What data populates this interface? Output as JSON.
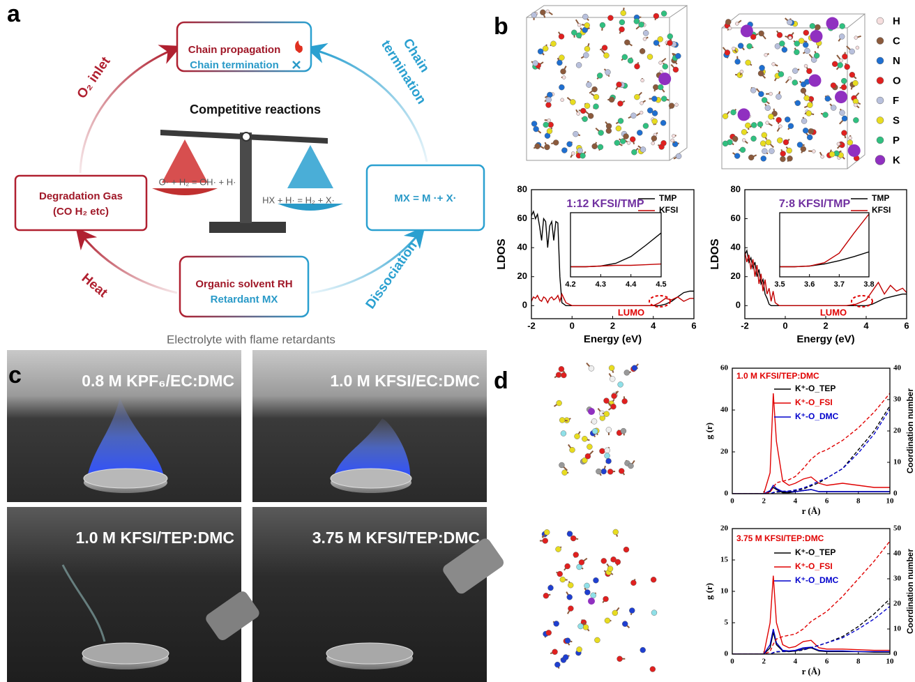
{
  "panel_a": {
    "label": "a",
    "propagation": "Chain propagation",
    "termination": "Chain termination",
    "competitive": "Competitive reactions",
    "degradation_title": "Degradation Gas",
    "degradation_detail": "(CO H₂ etc)",
    "reaction_1": "O· + H₂ = OH· + H·",
    "reaction_2": "HX + H· = H₂ + X·",
    "dissociation_eq": "MX = M ·+ X·",
    "solvent": "Organic solvent RH",
    "retardant": "Retardant MX",
    "caption": "Electrolyte with flame retardants",
    "arc_labels": {
      "o2_inlet": "O₂ inlet",
      "chain": "Chain",
      "termination": "termination",
      "heat": "Heat",
      "dissociation": "Dissociation"
    }
  },
  "panel_b": {
    "label": "b",
    "elements": [
      {
        "symbol": "H",
        "color": "#f6dede"
      },
      {
        "symbol": "C",
        "color": "#8b5a3c"
      },
      {
        "symbol": "N",
        "color": "#1f6fd0"
      },
      {
        "symbol": "O",
        "color": "#e0201f"
      },
      {
        "symbol": "F",
        "color": "#b8c0dc"
      },
      {
        "symbol": "S",
        "color": "#e8dc20"
      },
      {
        "symbol": "P",
        "color": "#30c080"
      },
      {
        "symbol": "K",
        "color": "#9030c0"
      }
    ]
  },
  "panel_c": {
    "label": "c",
    "photos": [
      "0.8 M KPF₆/EC:DMC",
      "1.0 M KFSI/EC:DMC",
      "1.0 M KFSI/TEP:DMC",
      "3.75 M KFSI/TEP:DMC"
    ]
  },
  "panel_d": {
    "label": "d"
  },
  "chart_data": [
    {
      "type": "line",
      "title": "1:12 KFSI/TMP",
      "title_color": "#7030a0",
      "xlabel": "Energy (eV)",
      "ylabel": "LDOS",
      "annotation": "LUMO",
      "xlim": [
        -2,
        6
      ],
      "xticks": [
        -2,
        0,
        2,
        4,
        6
      ],
      "ylim": [
        -9,
        80
      ],
      "yticks": [
        0,
        20,
        40,
        60,
        80
      ],
      "x": [
        -2,
        -1.9,
        -1.8,
        -1.7,
        -1.6,
        -1.5,
        -1.4,
        -1.3,
        -1.2,
        -1.1,
        -1.0,
        -0.9,
        -0.8,
        -0.7,
        -0.6,
        -0.5,
        -0.3,
        0,
        1,
        2,
        3,
        4,
        4.3,
        4.6,
        4.9,
        5.2,
        5.5,
        5.8,
        6
      ],
      "series": [
        {
          "name": "TMP",
          "color": "#000000",
          "values": [
            62,
            65,
            60,
            63,
            55,
            45,
            60,
            58,
            40,
            55,
            58,
            45,
            58,
            57,
            20,
            2,
            0,
            0,
            0,
            0,
            0,
            0,
            0,
            1,
            3,
            6,
            9,
            10,
            10
          ]
        },
        {
          "name": "KFSI",
          "color": "#c00000",
          "values": [
            3,
            6,
            5,
            7,
            4,
            3,
            6,
            5,
            2,
            5,
            6,
            4,
            5,
            7,
            3,
            8,
            2,
            0,
            0,
            0,
            0,
            0,
            2,
            5,
            4,
            6,
            3,
            5,
            5
          ]
        }
      ]
    },
    {
      "type": "line",
      "xlim": [
        4.2,
        4.5
      ],
      "xticks": [
        4.2,
        4.3,
        4.4,
        4.5
      ],
      "ylim": [
        -1.5,
        8
      ],
      "x": [
        4.2,
        4.25,
        4.3,
        4.35,
        4.4,
        4.45,
        4.5
      ],
      "series": [
        {
          "color": "#000000",
          "values": [
            0,
            0,
            0.1,
            0.5,
            1.5,
            3.2,
            5
          ]
        },
        {
          "color": "#c00000",
          "values": [
            0,
            0,
            0.1,
            0.2,
            0.2,
            0.3,
            0.4
          ]
        }
      ]
    },
    {
      "type": "line",
      "title": "7:8 KFSI/TMP",
      "title_color": "#7030a0",
      "xlabel": "Energy (eV)",
      "ylabel": "LDOS",
      "annotation": "LUMO",
      "xlim": [
        -2,
        6
      ],
      "xticks": [
        -2,
        0,
        2,
        4,
        6
      ],
      "ylim": [
        -9,
        80
      ],
      "yticks": [
        0,
        20,
        40,
        60,
        80
      ],
      "x": [
        -2,
        -1.9,
        -1.8,
        -1.7,
        -1.6,
        -1.5,
        -1.4,
        -1.3,
        -1.2,
        -1.1,
        -1.0,
        -0.9,
        -0.8,
        -0.7,
        -0.6,
        -0.5,
        -0.3,
        0,
        1,
        2,
        3,
        3.5,
        4,
        4.3,
        4.6,
        4.9,
        5.2,
        5.5,
        5.8,
        6
      ],
      "series": [
        {
          "name": "TMP",
          "color": "#000000",
          "values": [
            35,
            38,
            30,
            33,
            26,
            30,
            20,
            25,
            15,
            18,
            8,
            5,
            1,
            0,
            0,
            0,
            0,
            0,
            0,
            0,
            0,
            0,
            0,
            1,
            3,
            5,
            6,
            7,
            8,
            8
          ]
        },
        {
          "name": "KFSI",
          "color": "#c00000",
          "values": [
            37,
            30,
            35,
            25,
            32,
            20,
            28,
            15,
            22,
            10,
            18,
            8,
            12,
            3,
            10,
            2,
            0,
            0,
            0,
            0,
            0,
            1,
            4,
            10,
            16,
            8,
            14,
            10,
            12,
            9
          ]
        }
      ]
    },
    {
      "type": "line",
      "xlim": [
        3.5,
        3.8
      ],
      "xticks": [
        3.5,
        3.6,
        3.7,
        3.8
      ],
      "ylim": [
        -1.5,
        8
      ],
      "x": [
        3.5,
        3.55,
        3.6,
        3.65,
        3.7,
        3.75,
        3.8
      ],
      "series": [
        {
          "color": "#000000",
          "values": [
            0,
            0,
            0.1,
            0.4,
            0.9,
            1.5,
            2.2
          ]
        },
        {
          "color": "#c00000",
          "values": [
            0,
            0,
            0.1,
            0.6,
            2,
            5,
            7.8
          ]
        }
      ]
    },
    {
      "type": "line",
      "title": "1.0 M KFSI/TEP:DMC",
      "title_color": "#e00000",
      "xlabel": "r (Å)",
      "ylabel": "g (r)",
      "y2label": "Coordination number",
      "xlim": [
        0,
        10
      ],
      "xticks": [
        0,
        2,
        4,
        6,
        8,
        10
      ],
      "ylim": [
        0,
        60
      ],
      "yticks": [
        0,
        20,
        40,
        60
      ],
      "y2lim": [
        0,
        40
      ],
      "y2ticks": [
        0,
        10,
        20,
        30,
        40
      ],
      "x": [
        0,
        2,
        2.4,
        2.6,
        2.8,
        3.2,
        3.6,
        4,
        4.5,
        5,
        5.5,
        6,
        7,
        8,
        9,
        10
      ],
      "series": [
        {
          "name": "K⁺-O_TEP",
          "color": "#000000",
          "values": [
            0,
            0,
            1,
            3,
            2,
            0.5,
            0.5,
            1,
            1.5,
            2,
            1,
            1,
            1,
            1,
            1,
            1
          ]
        },
        {
          "name": "K⁺-O_FSI",
          "color": "#e00000",
          "values": [
            0,
            0,
            10,
            48,
            25,
            6,
            4,
            5,
            7,
            8,
            5,
            4,
            5,
            4,
            3,
            3
          ]
        },
        {
          "name": "K⁺-O_DMC",
          "color": "#0000cc",
          "values": [
            0,
            0,
            1.5,
            4,
            2.5,
            1,
            1,
            1,
            1.5,
            2,
            1,
            1,
            1,
            1,
            1,
            1
          ]
        },
        {
          "color": "#000000",
          "dash": true,
          "axis": "y2",
          "values": [
            0,
            0,
            0,
            0.3,
            0.5,
            0.6,
            0.7,
            1,
            1.5,
            2.5,
            3.5,
            5,
            8,
            14,
            20,
            28
          ]
        },
        {
          "color": "#e00000",
          "dash": true,
          "axis": "y2",
          "values": [
            0,
            0,
            0.5,
            2,
            3.5,
            4,
            4.5,
            5.5,
            8,
            11,
            13,
            14,
            17,
            21,
            26,
            32
          ]
        },
        {
          "color": "#0000cc",
          "dash": true,
          "axis": "y2",
          "values": [
            0,
            0,
            0,
            0.4,
            0.7,
            0.8,
            0.9,
            1.2,
            1.8,
            2.8,
            4,
            5,
            8,
            13,
            19,
            27
          ]
        }
      ]
    },
    {
      "type": "line",
      "title": "3.75 M KFSI/TEP:DMC",
      "title_color": "#e00000",
      "xlabel": "r (Å)",
      "ylabel": "g (r)",
      "y2label": "Coordination number",
      "xlim": [
        0,
        10
      ],
      "xticks": [
        0,
        2,
        4,
        6,
        8,
        10
      ],
      "ylim": [
        0,
        20
      ],
      "yticks": [
        0,
        5,
        10,
        15,
        20
      ],
      "y2lim": [
        0,
        50
      ],
      "y2ticks": [
        0,
        10,
        20,
        30,
        40,
        50
      ],
      "x": [
        0,
        2,
        2.4,
        2.6,
        2.8,
        3.2,
        3.6,
        4,
        4.5,
        5,
        5.5,
        6,
        7,
        8,
        9,
        10
      ],
      "series": [
        {
          "name": "K⁺-O_TEP",
          "color": "#000000",
          "values": [
            0,
            0,
            1,
            3.5,
            1.5,
            0.5,
            0.4,
            0.5,
            0.8,
            1,
            0.5,
            0.4,
            0.4,
            0.4,
            0.3,
            0.3
          ]
        },
        {
          "name": "K⁺-O_FSI",
          "color": "#e00000",
          "values": [
            0,
            0,
            5,
            12.5,
            5,
            1.5,
            1,
            1.2,
            2,
            2.2,
            1,
            0.8,
            0.8,
            0.7,
            0.6,
            0.6
          ]
        },
        {
          "name": "K⁺-O_DMC",
          "color": "#0000cc",
          "values": [
            0,
            0,
            1.5,
            4,
            1.8,
            0.6,
            0.5,
            0.6,
            1,
            1.1,
            0.6,
            0.5,
            0.5,
            0.4,
            0.4,
            0.4
          ]
        },
        {
          "color": "#000000",
          "dash": true,
          "axis": "y2",
          "values": [
            0,
            0,
            0,
            0.5,
            0.8,
            1,
            1,
            1.2,
            1.6,
            2.5,
            3.5,
            4.5,
            7,
            11,
            16,
            22
          ]
        },
        {
          "color": "#e00000",
          "dash": true,
          "axis": "y2",
          "values": [
            0,
            0,
            1,
            4,
            6,
            7,
            7.5,
            8,
            10,
            13,
            15,
            17,
            23,
            30,
            37,
            45
          ]
        },
        {
          "color": "#0000cc",
          "dash": true,
          "axis": "y2",
          "values": [
            0,
            0,
            0,
            0.6,
            1,
            1.1,
            1.2,
            1.4,
            1.8,
            2.6,
            3.5,
            4.5,
            6.5,
            10,
            14,
            19
          ]
        }
      ]
    }
  ]
}
